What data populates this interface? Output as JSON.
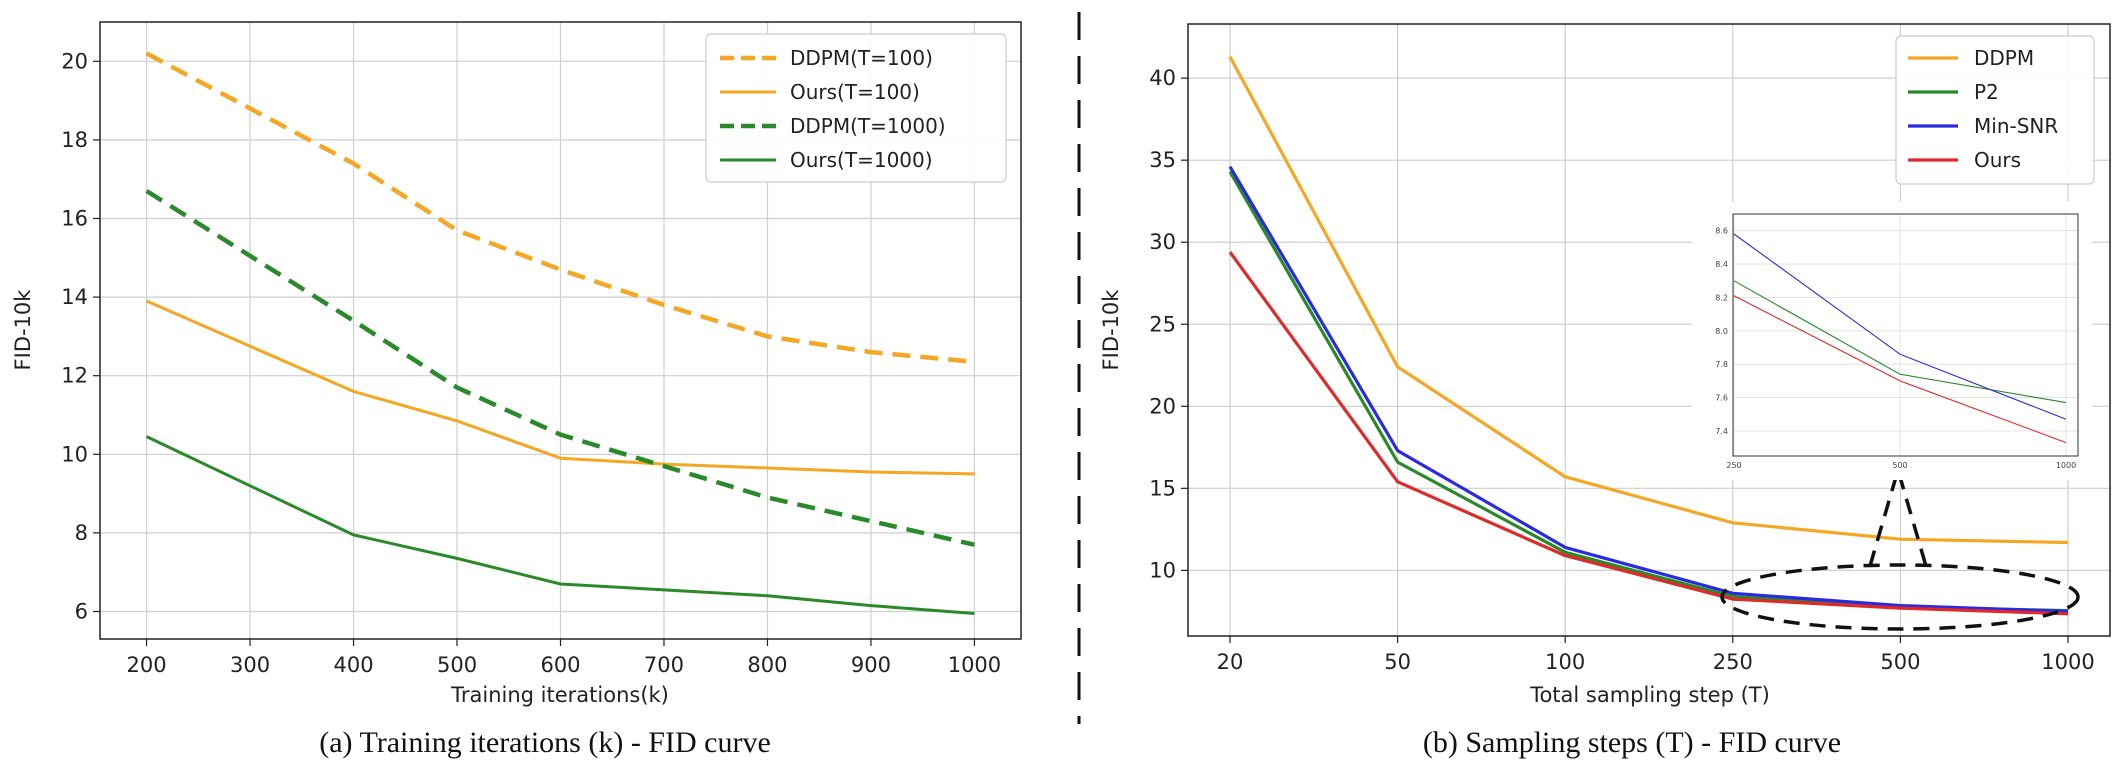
{
  "chart_data": [
    {
      "type": "line",
      "xlabel": "Training iterations(k)",
      "ylabel": "FID-10k",
      "caption": "(a) Training iterations (k) - FID curve",
      "x": [
        200,
        400,
        500,
        600,
        700,
        800,
        900,
        1000
      ],
      "xticks": [
        "200",
        "300",
        "400",
        "500",
        "600",
        "700",
        "800",
        "900",
        "1000"
      ],
      "xlim": [
        155,
        1045
      ],
      "yticks": [
        "6",
        "8",
        "10",
        "12",
        "14",
        "16",
        "18",
        "20"
      ],
      "ylim": [
        5.3,
        21
      ],
      "grid": true,
      "legend_position": "top-right",
      "series": [
        {
          "name": "DDPM(T=100)",
          "color": "#f5a623",
          "dash": true,
          "points": [
            [
              200,
              20.2
            ],
            [
              400,
              17.4
            ],
            [
              500,
              15.7
            ],
            [
              600,
              14.7
            ],
            [
              700,
              13.8
            ],
            [
              800,
              13.0
            ],
            [
              900,
              12.6
            ],
            [
              1000,
              12.35
            ]
          ]
        },
        {
          "name": "Ours(T=100)",
          "color": "#f5a623",
          "dash": false,
          "points": [
            [
              200,
              13.9
            ],
            [
              400,
              11.6
            ],
            [
              500,
              10.85
            ],
            [
              600,
              9.9
            ],
            [
              700,
              9.75
            ],
            [
              800,
              9.65
            ],
            [
              900,
              9.55
            ],
            [
              1000,
              9.5
            ]
          ]
        },
        {
          "name": "DDPM(T=1000)",
          "color": "#2a8a2a",
          "dash": true,
          "points": [
            [
              200,
              16.7
            ],
            [
              400,
              13.4
            ],
            [
              500,
              11.7
            ],
            [
              600,
              10.5
            ],
            [
              700,
              9.7
            ],
            [
              800,
              8.9
            ],
            [
              900,
              8.3
            ],
            [
              1000,
              7.7
            ]
          ]
        },
        {
          "name": "Ours(T=1000)",
          "color": "#2a8a2a",
          "dash": false,
          "points": [
            [
              200,
              10.45
            ],
            [
              400,
              7.95
            ],
            [
              500,
              7.35
            ],
            [
              600,
              6.7
            ],
            [
              700,
              6.55
            ],
            [
              800,
              6.4
            ],
            [
              900,
              6.15
            ],
            [
              1000,
              5.95
            ]
          ]
        }
      ]
    },
    {
      "type": "line",
      "xlabel": "Total sampling step (T)",
      "ylabel": "FID-10k",
      "caption": "(b) Sampling steps (T) - FID curve",
      "categories": [
        "20",
        "50",
        "100",
        "250",
        "500",
        "1000"
      ],
      "yticks": [
        "10",
        "15",
        "20",
        "25",
        "30",
        "35",
        "40"
      ],
      "ylim": [
        6.0,
        43.3
      ],
      "grid": true,
      "legend_position": "top-right",
      "series": [
        {
          "name": "DDPM",
          "color": "#f5a623",
          "values": [
            41.3,
            22.4,
            15.7,
            12.9,
            11.9,
            11.7
          ]
        },
        {
          "name": "P2",
          "color": "#2a8a2a",
          "values": [
            34.3,
            16.6,
            11.1,
            8.4,
            7.75,
            7.55
          ]
        },
        {
          "name": "Min-SNR",
          "color": "#2a2ae0",
          "values": [
            34.6,
            17.3,
            11.4,
            8.6,
            7.85,
            7.5
          ]
        },
        {
          "name": "Ours",
          "color": "#e02a2a",
          "values": [
            29.4,
            15.4,
            10.9,
            8.25,
            7.7,
            7.35
          ]
        }
      ],
      "inset": {
        "categories": [
          "250",
          "500",
          "1000"
        ],
        "yticks": [
          "7.4",
          "7.6",
          "7.8",
          "8.0",
          "8.2",
          "8.4",
          "8.6"
        ],
        "ylim": [
          7.25,
          8.7
        ],
        "series": [
          {
            "name": "P2",
            "color": "#2a8a2a",
            "values": [
              8.3,
              7.74,
              7.57
            ]
          },
          {
            "name": "Min-SNR",
            "color": "#2a2ae0",
            "values": [
              8.58,
              7.86,
              7.47
            ]
          },
          {
            "name": "Ours",
            "color": "#e02a2a",
            "values": [
              8.21,
              7.7,
              7.33
            ]
          }
        ]
      }
    }
  ]
}
